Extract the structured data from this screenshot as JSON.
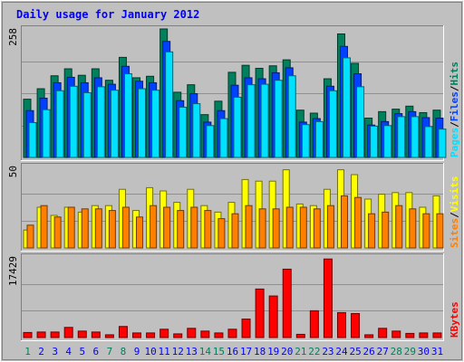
{
  "chart_data": {
    "title": "Daily usage for January 2012",
    "days": [
      "1",
      "2",
      "3",
      "4",
      "5",
      "6",
      "7",
      "8",
      "9",
      "10",
      "11",
      "12",
      "13",
      "14",
      "15",
      "16",
      "17",
      "18",
      "19",
      "20",
      "21",
      "22",
      "23",
      "24",
      "25",
      "26",
      "27",
      "28",
      "29",
      "30",
      "31"
    ],
    "weekend_days": [
      "1",
      "7",
      "8",
      "14",
      "15",
      "21",
      "22",
      "28",
      "29"
    ],
    "colors": {
      "title": "#0000ff",
      "background": "#c0c0c0",
      "hits": "#00805c",
      "files": "#0040ff",
      "pages": "#00e0ff",
      "visits": "#ffff00",
      "sites": "#ff8000",
      "kbytes": "#ff0000",
      "weekday_label": "#0000ff",
      "weekend_label": "#00805c"
    },
    "charts": [
      {
        "type": "bar",
        "ymax_label": "258",
        "ymax": 258,
        "ylabel": [
          "Pages",
          "/",
          "Files",
          "/",
          "Hits"
        ],
        "series": [
          {
            "name": "Hits",
            "values": [
              117,
              138,
              164,
              178,
              165,
              178,
              155,
              201,
              160,
              163,
              258,
              131,
              146,
              86,
              113,
              171,
              185,
              179,
              184,
              196,
              95,
              89,
              158,
              248,
              189,
              79,
              92,
              97,
              103,
              90,
              95
            ]
          },
          {
            "name": "Files",
            "values": [
              94,
              119,
              150,
              161,
              150,
              160,
              147,
              183,
              153,
              150,
              233,
              114,
              128,
              71,
              94,
              145,
              160,
              158,
              170,
              180,
              71,
              78,
              143,
              223,
              168,
              65,
              72,
              88,
              92,
              80,
              79
            ]
          },
          {
            "name": "Pages",
            "values": [
              70,
              96,
              134,
              143,
              130,
              142,
              135,
              168,
              138,
              135,
              212,
              101,
              108,
              64,
              78,
              121,
              146,
              147,
              155,
              164,
              66,
              72,
              134,
              200,
              142,
              63,
              64,
              82,
              82,
              62,
              57
            ]
          }
        ]
      },
      {
        "type": "bar",
        "ymax_label": "50",
        "ymax": 50,
        "ylabel": [
          "Sites",
          "/",
          "Visits"
        ],
        "series": [
          {
            "name": "Visits",
            "values": [
              11,
              25,
              20,
              25,
              22,
              26,
              26,
              36,
              23,
              37,
              35,
              28,
              36,
              26,
              22,
              28,
              42,
              41,
              41,
              48,
              27,
              26,
              36,
              48,
              45,
              30,
              33,
              34,
              34,
              25,
              32
            ]
          },
          {
            "name": "Sites",
            "values": [
              14,
              26,
              19,
              25,
              24,
              24,
              23,
              25,
              19,
              26,
              25,
              23,
              25,
              23,
              18,
              21,
              26,
              24,
              24,
              25,
              25,
              24,
              26,
              32,
              31,
              21,
              22,
              26,
              24,
              21,
              21
            ]
          }
        ]
      },
      {
        "type": "bar",
        "ymax_label": "17429",
        "ymax": 17429,
        "ylabel": [
          "KBytes"
        ],
        "series": [
          {
            "name": "KBytes",
            "values": [
              1100,
              1200,
              1200,
              2200,
              1400,
              1200,
              600,
              2400,
              1000,
              1000,
              1800,
              800,
              2000,
              1400,
              1000,
              1800,
              4000,
              10500,
              9000,
              14800,
              700,
              5800,
              17000,
              5400,
              5200,
              600,
              2000,
              1400,
              900,
              1000,
              1000
            ]
          }
        ]
      }
    ]
  }
}
